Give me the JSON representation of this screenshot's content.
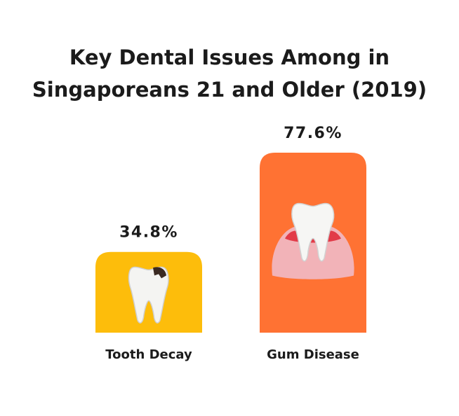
{
  "chart_data": {
    "type": "bar",
    "title": [
      "Key Dental Issues Among in",
      "Singaporeans 21 and Older (2019)"
    ],
    "categories": [
      "Tooth Decay",
      "Gum Disease"
    ],
    "values": [
      34.8,
      77.6
    ],
    "value_labels": [
      "34.8%",
      "77.6%"
    ],
    "colors": [
      "#fdbd0b",
      "#ff7233"
    ]
  }
}
